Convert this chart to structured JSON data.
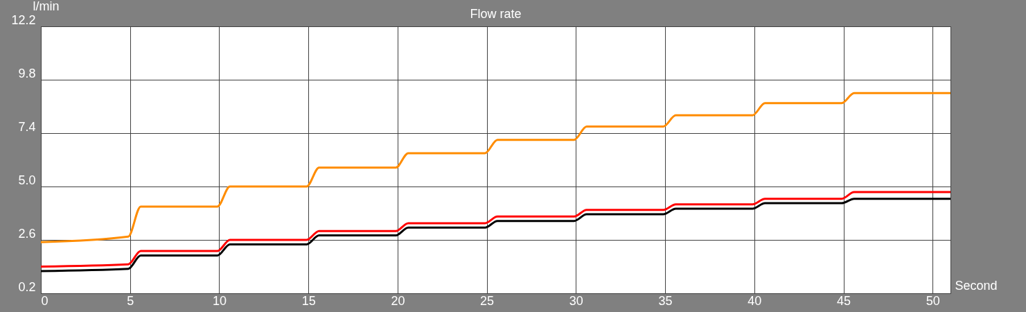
{
  "chart_data": {
    "type": "line",
    "title": "Flow rate",
    "xlabel": "Second",
    "ylabel": "l/min",
    "x": [
      0,
      4.9,
      5.6,
      9.9,
      10.6,
      14.9,
      15.6,
      19.9,
      20.6,
      24.9,
      25.6,
      29.9,
      30.6,
      34.9,
      35.6,
      39.9,
      40.6,
      44.9,
      45.6,
      51
    ],
    "series": [
      {
        "color": "#ff8c00",
        "values": [
          2.5,
          2.75,
          4.1,
          4.1,
          5.0,
          5.0,
          5.85,
          5.85,
          6.5,
          6.5,
          7.1,
          7.1,
          7.7,
          7.7,
          8.2,
          8.2,
          8.75,
          8.75,
          9.2,
          9.2
        ]
      },
      {
        "color": "#ff0000",
        "values": [
          1.4,
          1.5,
          2.1,
          2.1,
          2.6,
          2.6,
          3.0,
          3.0,
          3.35,
          3.35,
          3.65,
          3.65,
          3.95,
          3.95,
          4.2,
          4.2,
          4.45,
          4.45,
          4.75,
          4.75
        ]
      },
      {
        "color": "#000000",
        "values": [
          1.2,
          1.3,
          1.9,
          1.9,
          2.4,
          2.4,
          2.8,
          2.8,
          3.15,
          3.15,
          3.45,
          3.45,
          3.75,
          3.75,
          4.0,
          4.0,
          4.25,
          4.25,
          4.45,
          4.45
        ]
      }
    ],
    "xlim": [
      0,
      51
    ],
    "xticks": [
      0,
      5,
      10,
      15,
      20,
      25,
      30,
      35,
      40,
      45,
      50
    ],
    "ylim": [
      0.2,
      12.2
    ],
    "yticks": [
      0.2,
      2.6,
      {
        "value": 5,
        "label": "5.0"
      },
      7.4,
      9.8,
      12.2
    ],
    "grid": true,
    "legend": false
  }
}
